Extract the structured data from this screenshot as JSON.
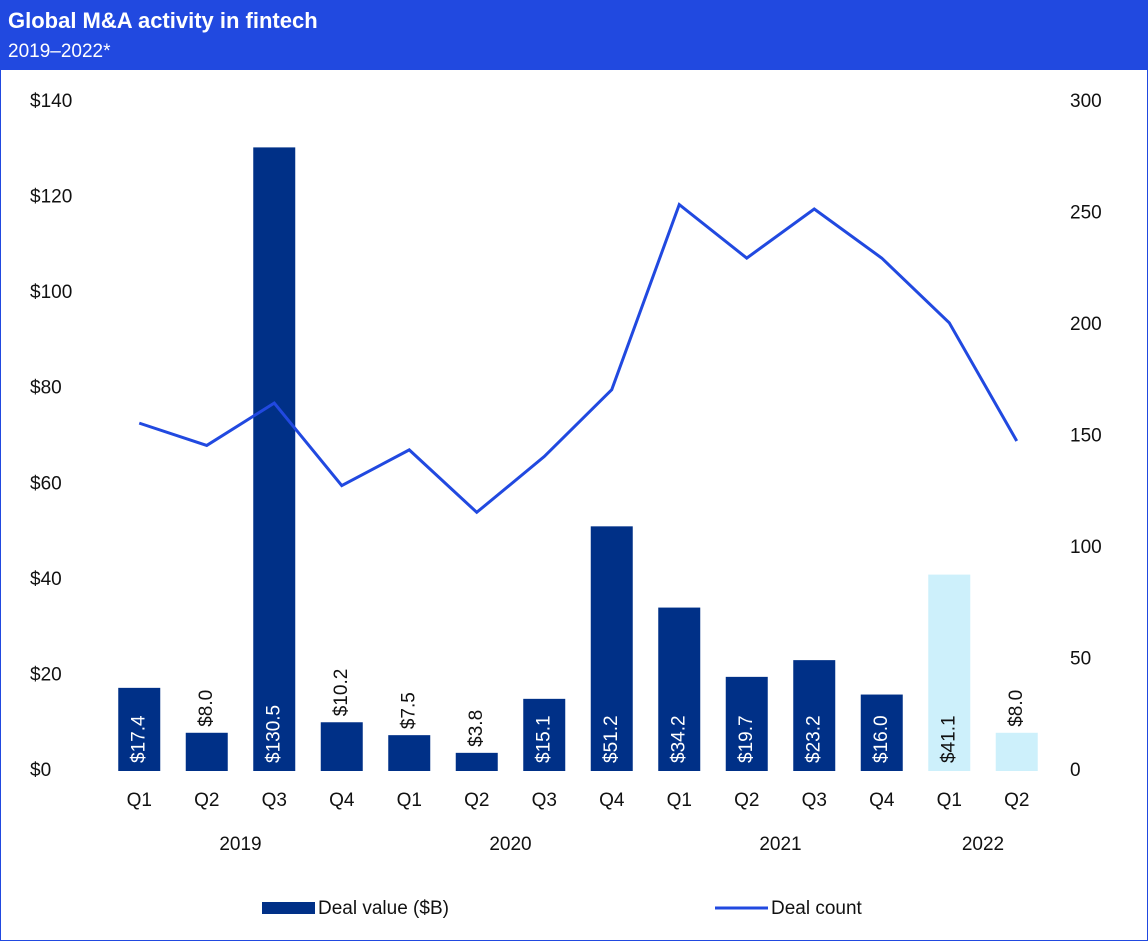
{
  "chart_data": {
    "type": "bar",
    "title": "Global M&A activity in fintech",
    "subtitle": "2019–2022*",
    "groups": [
      {
        "label": "2019",
        "categories": [
          "Q1",
          "Q2",
          "Q3",
          "Q4"
        ]
      },
      {
        "label": "2020",
        "categories": [
          "Q1",
          "Q2",
          "Q3",
          "Q4"
        ]
      },
      {
        "label": "2021",
        "categories": [
          "Q1",
          "Q2",
          "Q3",
          "Q4"
        ]
      },
      {
        "label": "2022",
        "categories": [
          "Q1",
          "Q2"
        ]
      }
    ],
    "series": [
      {
        "name": "Deal value ($B)",
        "type": "bar",
        "color": "#003087",
        "colors": [
          "#003087",
          "#003087",
          "#003087",
          "#003087",
          "#003087",
          "#003087",
          "#003087",
          "#003087",
          "#003087",
          "#003087",
          "#003087",
          "#003087",
          "#cdf0fb",
          "#cdf0fb"
        ],
        "values": [
          17.4,
          8.0,
          130.5,
          10.2,
          7.5,
          3.8,
          15.1,
          51.2,
          34.2,
          19.7,
          23.2,
          16.0,
          41.1,
          8.0
        ],
        "value_labels": [
          "$17.4",
          "$8.0",
          "$130.5",
          "$10.2",
          "$7.5",
          "$3.8",
          "$15.1",
          "$51.2",
          "$34.2",
          "$19.7",
          "$23.2",
          "$16.0",
          "$41.1",
          "$8.0"
        ]
      },
      {
        "name": "Deal count",
        "type": "line",
        "axis": "y2",
        "color": "#2149e0",
        "values": [
          156,
          146,
          165,
          128,
          144,
          116,
          141,
          171,
          254,
          230,
          252,
          230,
          201,
          148
        ]
      }
    ],
    "ylim": [
      0,
      140
    ],
    "yticks": [
      {
        "value": 0,
        "label": "$0"
      },
      {
        "value": 20,
        "label": "$20"
      },
      {
        "value": 40,
        "label": "$40"
      },
      {
        "value": 60,
        "label": "$60"
      },
      {
        "value": 80,
        "label": "$80"
      },
      {
        "value": 100,
        "label": "$100"
      },
      {
        "value": 120,
        "label": "$120"
      },
      {
        "value": 140,
        "label": "$140"
      }
    ],
    "y2lim": [
      0,
      300
    ],
    "y2ticks": [
      0,
      50,
      100,
      150,
      200,
      250,
      300
    ],
    "legend": "bottom"
  }
}
